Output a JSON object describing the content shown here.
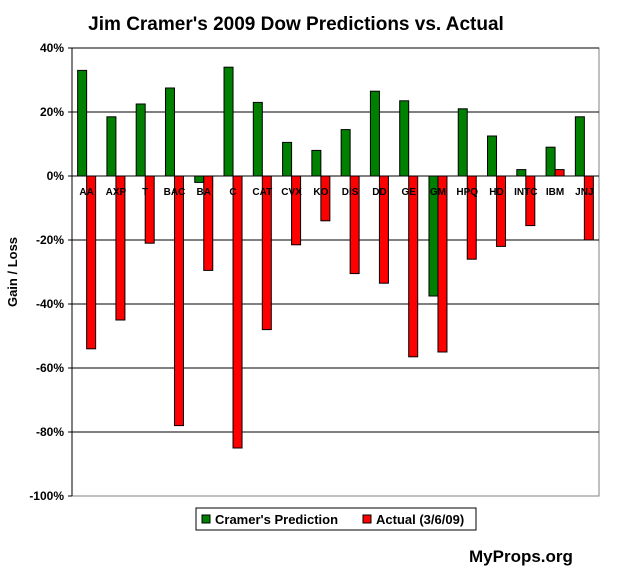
{
  "chart_data": {
    "type": "bar",
    "title": "Jim Cramer's 2009 Dow Predictions vs. Actual",
    "ylabel": "Gain / Loss",
    "xlabel": "",
    "ylim": [
      -100,
      40
    ],
    "y_ticks": [
      "40%",
      "20%",
      "0%",
      "-20%",
      "-40%",
      "-60%",
      "-80%",
      "-100%"
    ],
    "y_tick_values": [
      40,
      20,
      0,
      -20,
      -40,
      -60,
      -80,
      -100
    ],
    "grid": true,
    "legend_position": "bottom-center",
    "categories": [
      "AA",
      "AXP",
      "T",
      "BAC",
      "BA",
      "C",
      "CAT",
      "CVX",
      "KO",
      "DIS",
      "DD",
      "GE",
      "GM",
      "HPQ",
      "HD",
      "INTC",
      "IBM",
      "JNJ"
    ],
    "series": [
      {
        "name": "Cramer's Prediction",
        "color": "#008000",
        "values": [
          33,
          18.5,
          22.5,
          27.5,
          -2,
          34,
          23,
          10.5,
          8,
          14.5,
          26.5,
          23.5,
          -37.5,
          21,
          12.5,
          2,
          9,
          18.5
        ]
      },
      {
        "name": "Actual (3/6/09)",
        "color": "#ff0000",
        "values": [
          -54,
          -45,
          -21,
          -78,
          -29.5,
          -85,
          -48,
          -21.5,
          -14,
          -30.5,
          -33.5,
          -56.5,
          -55,
          -26,
          -22,
          -15.5,
          2,
          -20
        ]
      }
    ]
  },
  "watermark": "MyProps.org",
  "colors": {
    "background": "#ffffff",
    "plot_background": "#ffffff",
    "grid": "#000000",
    "border": "#808080"
  }
}
